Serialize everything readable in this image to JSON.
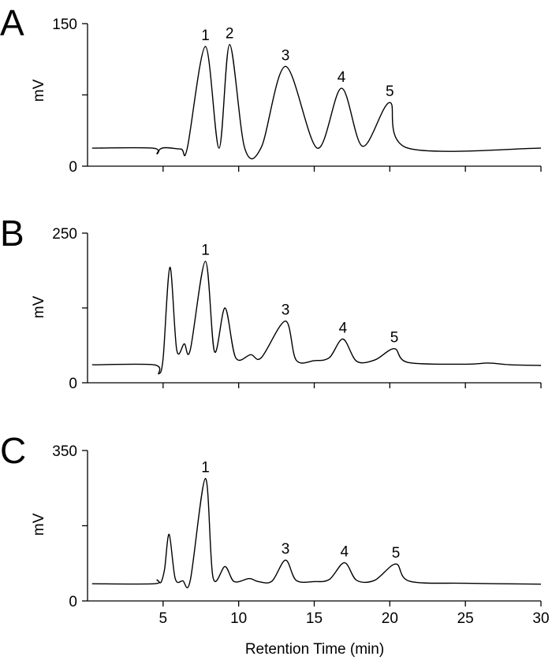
{
  "chart_data": {
    "type": "line",
    "xlabel": "Retention Time (min)",
    "xlim": [
      0,
      30
    ],
    "xticks": [
      5,
      10,
      15,
      20,
      25,
      30
    ],
    "panels": [
      {
        "letter": "A",
        "ylabel": "mV",
        "ylim": [
          0,
          150
        ],
        "yticks": [
          0,
          150
        ],
        "ymid_tick": 75,
        "baseline": 19,
        "trace": [
          [
            0.3,
            19
          ],
          [
            4.3,
            19
          ],
          [
            4.6,
            13
          ],
          [
            4.8,
            18
          ],
          [
            5.2,
            19.5
          ],
          [
            6.2,
            18
          ],
          [
            6.6,
            19
          ],
          [
            7.8,
            126
          ],
          [
            8.7,
            19
          ],
          [
            9.4,
            128
          ],
          [
            10.4,
            19
          ],
          [
            11.5,
            20
          ],
          [
            13.1,
            105
          ],
          [
            15.2,
            19
          ],
          [
            16.8,
            82
          ],
          [
            18.2,
            21
          ],
          [
            20.0,
            67
          ],
          [
            21.2,
            19
          ],
          [
            30,
            19
          ]
        ],
        "peaks": [
          {
            "label": "1",
            "x": 7.8,
            "y": 126
          },
          {
            "label": "2",
            "x": 9.4,
            "y": 128
          },
          {
            "label": "3",
            "x": 13.1,
            "y": 105
          },
          {
            "label": "4",
            "x": 16.8,
            "y": 82
          },
          {
            "label": "5",
            "x": 20.0,
            "y": 67
          }
        ]
      },
      {
        "letter": "B",
        "ylabel": "mV",
        "ylim": [
          0,
          250
        ],
        "yticks": [
          0,
          250
        ],
        "ymid_tick": 125,
        "baseline": 30,
        "trace": [
          [
            0.3,
            30
          ],
          [
            4.4,
            30
          ],
          [
            4.7,
            15
          ],
          [
            5.0,
            40
          ],
          [
            5.45,
            193
          ],
          [
            5.9,
            55
          ],
          [
            6.4,
            65
          ],
          [
            6.8,
            55
          ],
          [
            7.8,
            203
          ],
          [
            8.4,
            52
          ],
          [
            9.1,
            125
          ],
          [
            9.8,
            42
          ],
          [
            10.8,
            47
          ],
          [
            11.5,
            42
          ],
          [
            13.1,
            103
          ],
          [
            13.8,
            38
          ],
          [
            15.0,
            37
          ],
          [
            16.0,
            42
          ],
          [
            16.9,
            73
          ],
          [
            17.8,
            36
          ],
          [
            19.0,
            38
          ],
          [
            20.3,
            57
          ],
          [
            21.2,
            34
          ],
          [
            25.0,
            31
          ],
          [
            26.5,
            33
          ],
          [
            28.0,
            30
          ],
          [
            30,
            29
          ]
        ],
        "peaks": [
          {
            "label": "1",
            "x": 7.8,
            "y": 203
          },
          {
            "label": "3",
            "x": 13.1,
            "y": 103
          },
          {
            "label": "4",
            "x": 16.9,
            "y": 73
          },
          {
            "label": "5",
            "x": 20.3,
            "y": 57
          }
        ]
      },
      {
        "letter": "C",
        "ylabel": "mV",
        "ylim": [
          0,
          350
        ],
        "yticks": [
          0,
          350
        ],
        "ymid_tick": 175,
        "baseline": 40,
        "trace": [
          [
            0.3,
            40
          ],
          [
            4.4,
            40
          ],
          [
            4.6,
            49
          ],
          [
            4.85,
            43
          ],
          [
            5.1,
            75
          ],
          [
            5.4,
            155
          ],
          [
            5.8,
            52
          ],
          [
            6.3,
            47
          ],
          [
            6.8,
            48
          ],
          [
            7.8,
            285
          ],
          [
            8.3,
            55
          ],
          [
            9.1,
            80
          ],
          [
            9.7,
            45
          ],
          [
            10.7,
            52
          ],
          [
            11.3,
            45
          ],
          [
            12.2,
            46
          ],
          [
            13.1,
            95
          ],
          [
            13.8,
            48
          ],
          [
            15.0,
            45
          ],
          [
            16.0,
            50
          ],
          [
            17.0,
            89
          ],
          [
            17.8,
            48
          ],
          [
            19.0,
            48
          ],
          [
            20.4,
            86
          ],
          [
            21.3,
            46
          ],
          [
            25.0,
            41
          ],
          [
            30,
            39
          ]
        ],
        "peaks": [
          {
            "label": "1",
            "x": 7.8,
            "y": 285
          },
          {
            "label": "3",
            "x": 13.1,
            "y": 95
          },
          {
            "label": "4",
            "x": 17.0,
            "y": 89
          },
          {
            "label": "5",
            "x": 20.4,
            "y": 86
          }
        ]
      }
    ]
  }
}
